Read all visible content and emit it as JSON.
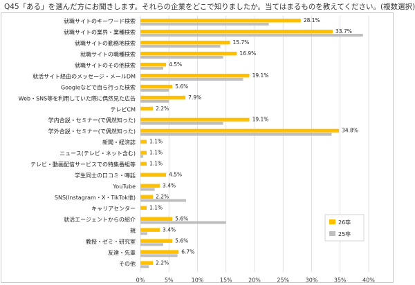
{
  "question": "Q45「ある」を選んだ方にお聞きします。それらの企業をどこで知りましたか。当てはまるものを教えてください。(複数選択)",
  "colors": {
    "s26": "#FFC000",
    "s25": "#BFBFBF",
    "grid": "#D9D9D9",
    "frame": "#C8C8C8"
  },
  "chart_data": {
    "type": "bar",
    "orientation": "horizontal",
    "title": "Q45「ある」を選んだ方にお聞きします。それらの企業をどこで知りましたか。当てはまるものを教えてください。(複数選択)",
    "categories": [
      "就職サイトのキーワード検索",
      "就職サイトの業界・業種検索",
      "就職サイトの勤務地検索",
      "就職サイトの職種検索",
      "就職サイトのその他検索",
      "就活サイト経由のメッセージ・メールDM",
      "Googleなどで自ら行った検索",
      "Web・SNS等を利用していた際に偶然見た広告",
      "テレビCM",
      "学内合説・セミナー(で偶然知った)",
      "学外合説・セミナー(で偶然知った)",
      "新聞・経済誌",
      "ニュース(テレビ・ネット含む)",
      "テレビ・動画配信サービスでの特集番組等",
      "学生同士の口コミ・噂話",
      "YouTube",
      "SNS(Instagram・X・TikTok他)",
      "キャリアセンター",
      "就活エージェントからの紹介",
      "親",
      "教授・ゼミ・研究室",
      "友達・先輩",
      "その他"
    ],
    "series": [
      {
        "name": "26卒",
        "values": [
          28.1,
          33.7,
          15.7,
          16.9,
          4.5,
          19.1,
          5.6,
          7.9,
          2.2,
          19.1,
          34.8,
          1.1,
          1.1,
          1.1,
          4.5,
          3.4,
          2.2,
          1.1,
          5.6,
          3.4,
          5.6,
          6.7,
          2.2
        ],
        "labels": [
          "28.1%",
          "33.7%",
          "15.7%",
          "16.9%",
          "4.5%",
          "19.1%",
          "5.6%",
          "7.9%",
          "2.2%",
          "19.1%",
          "34.8%",
          "1.1%",
          "1.1%",
          "1.1%",
          "4.5%",
          "3.4%",
          "2.2%",
          "1.1%",
          "5.6%",
          "3.4%",
          "5.6%",
          "6.7%",
          "2.2%"
        ]
      },
      {
        "name": "25卒",
        "values": [
          22.5,
          39.0,
          14.0,
          14.5,
          4.0,
          18.0,
          5.0,
          5.0,
          0.0,
          14.5,
          33.5,
          0.0,
          0.5,
          0.0,
          0.0,
          2.5,
          8.0,
          0.0,
          15.0,
          1.2,
          4.0,
          6.5,
          1.5
        ]
      }
    ],
    "xlim": [
      0,
      40
    ],
    "xticks": [
      "0%",
      "5%",
      "10%",
      "15%",
      "20%",
      "25%",
      "30%",
      "35%",
      "40%"
    ],
    "grid": true,
    "legend_position": "bottom-right"
  }
}
